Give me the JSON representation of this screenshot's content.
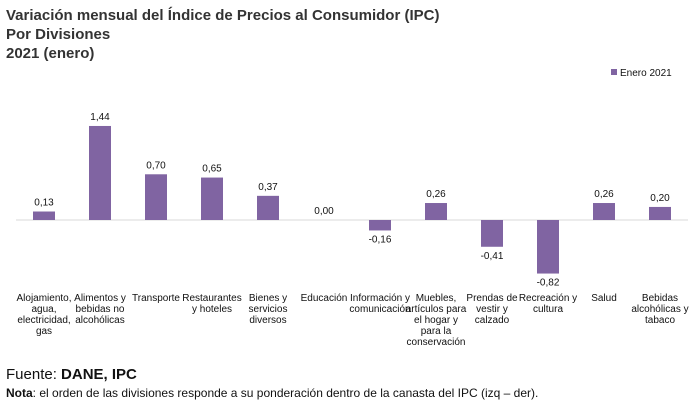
{
  "title": {
    "line1": "Variación mensual del Índice de Precios al Consumidor (IPC)",
    "line2": "Por Divisiones",
    "line3": "2021 (enero)"
  },
  "chart_data": {
    "type": "bar",
    "title": "Variación mensual del Índice de Precios al Consumidor (IPC) Por Divisiones 2021 (enero)",
    "xlabel": "",
    "ylabel": "",
    "ylim": [
      -0.9,
      1.5
    ],
    "legend_position": "top-right",
    "series": [
      {
        "name": "Enero 2021",
        "color": "#8064A2",
        "values": [
          0.13,
          1.44,
          0.7,
          0.65,
          0.37,
          0.0,
          -0.16,
          0.26,
          -0.41,
          -0.82,
          0.26,
          0.2
        ],
        "value_labels": [
          "0,13",
          "1,44",
          "0,70",
          "0,65",
          "0,37",
          "0,00",
          "-0,16",
          "0,26",
          "-0,41",
          "-0,82",
          "0,26",
          "0,20"
        ]
      }
    ],
    "categories": [
      [
        "Alojamiento,",
        "agua,",
        "electricidad,",
        "gas"
      ],
      [
        "Alimentos y",
        "bebidas no",
        "alcohólicas"
      ],
      [
        "Transporte"
      ],
      [
        "Restaurantes",
        "y hoteles"
      ],
      [
        "Bienes y",
        "servicios",
        "diversos"
      ],
      [
        "Educación"
      ],
      [
        "Información y",
        "comunicación"
      ],
      [
        "Muebles,",
        "artículos para",
        "el hogar y",
        "para la",
        "conservación"
      ],
      [
        "Prendas de",
        "vestir y",
        "calzado"
      ],
      [
        "Recreación y",
        "cultura"
      ],
      [
        "Salud"
      ],
      [
        "Bebidas",
        "alcohólicas y",
        "tabaco"
      ]
    ]
  },
  "footer": {
    "source_prefix": "Fuente: ",
    "source_name": "DANE, IPC",
    "note_label": "Nota",
    "note_text": ": el orden de las divisiones responde a su ponderación dentro de la canasta del IPC (izq – der)."
  }
}
